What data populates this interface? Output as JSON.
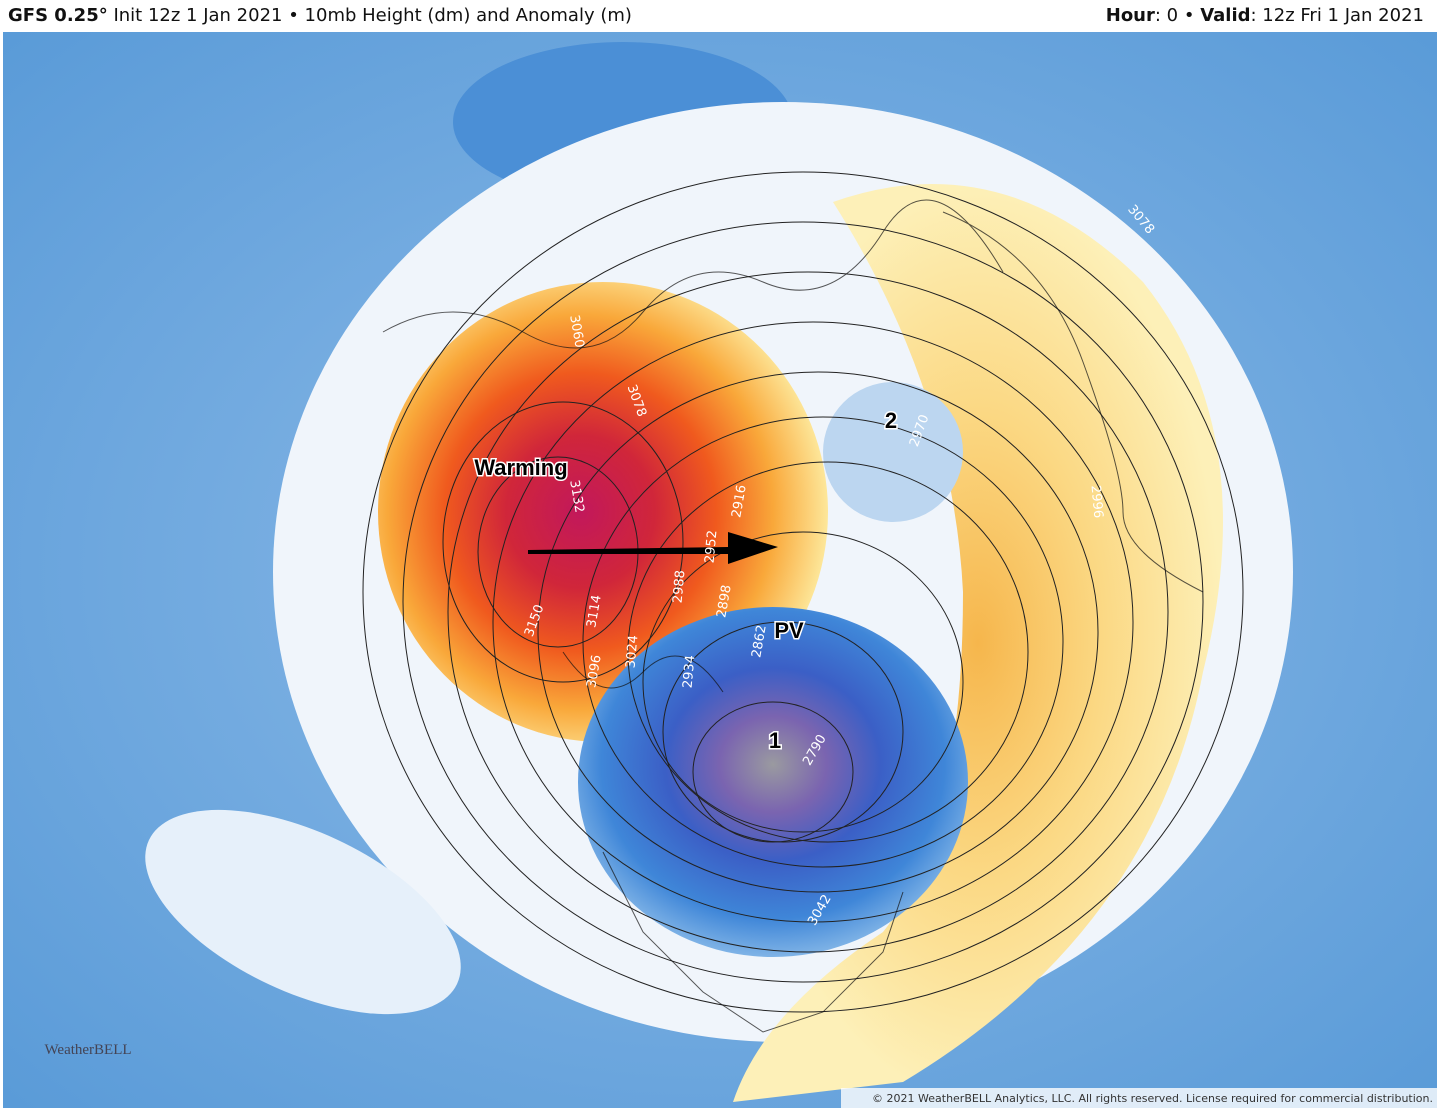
{
  "header": {
    "model": "GFS 0.25°",
    "description": "Init 12z 1 Jan 2021 • 10mb Height (dm) and Anomaly (m)",
    "hour_label": "Hour",
    "hour_value": ": 0 •",
    "valid_label": "Valid",
    "valid_value": ": 12z Fri 1 Jan 2021"
  },
  "annotations": {
    "warming": "Warming",
    "vortex_2": "2",
    "pv": "PV",
    "vortex_1": "1"
  },
  "contour_labels": [
    "3078",
    "3132",
    "3150",
    "3114",
    "3096",
    "3024",
    "2988",
    "2898",
    "2934",
    "2862",
    "2952",
    "2916",
    "2790",
    "3060",
    "3078",
    "2970",
    "2996",
    "3042"
  ],
  "logo": "WeatherBELL",
  "copyright": "© 2021 WeatherBELL Analytics, LLC. All rights reserved. License required for commercial distribution."
}
